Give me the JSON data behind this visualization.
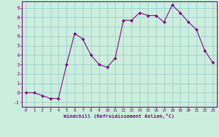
{
  "x": [
    0,
    1,
    2,
    3,
    4,
    5,
    6,
    7,
    8,
    9,
    10,
    11,
    12,
    13,
    14,
    15,
    16,
    17,
    18,
    19,
    20,
    21,
    22,
    23
  ],
  "y": [
    0,
    0,
    -0.3,
    -0.6,
    -0.6,
    3.0,
    6.3,
    5.7,
    4.0,
    3.0,
    2.7,
    3.7,
    7.7,
    7.7,
    8.5,
    8.2,
    8.2,
    7.5,
    9.3,
    8.5,
    7.5,
    6.7,
    4.5,
    3.2
  ],
  "line_color": "#7B007B",
  "marker_color": "#7B007B",
  "bg_color": "#cceedd",
  "grid_color": "#99cccc",
  "xlabel": "Windchill (Refroidissement éolien,°C)",
  "tick_color": "#7B007B",
  "ylim": [
    -1.5,
    9.7
  ],
  "xlim": [
    -0.5,
    23.5
  ],
  "yticks": [
    -1,
    0,
    1,
    2,
    3,
    4,
    5,
    6,
    7,
    8,
    9
  ],
  "xticks": [
    0,
    1,
    2,
    3,
    4,
    5,
    6,
    7,
    8,
    9,
    10,
    11,
    12,
    13,
    14,
    15,
    16,
    17,
    18,
    19,
    20,
    21,
    22,
    23
  ]
}
